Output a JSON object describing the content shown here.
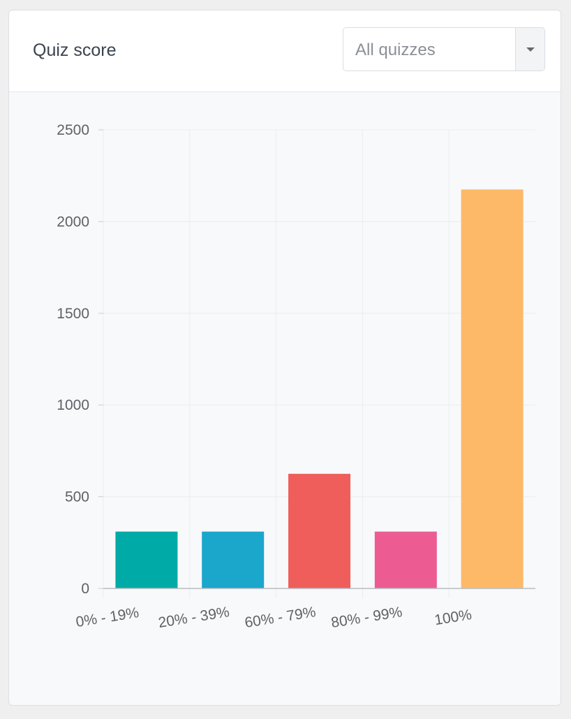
{
  "card": {
    "title": "Quiz score",
    "filter": {
      "selected": "All quizzes"
    }
  },
  "chart_data": {
    "type": "bar",
    "title": "",
    "xlabel": "",
    "ylabel": "",
    "categories": [
      "0% - 19%",
      "20% - 39%",
      "60% - 79%",
      "80% - 99%",
      "100%"
    ],
    "values": [
      310,
      310,
      625,
      310,
      2175
    ],
    "colors": [
      "#00aaa6",
      "#1ba6cb",
      "#ef5e5b",
      "#ec5c93",
      "#fdb968"
    ],
    "ylim": [
      0,
      2500
    ],
    "yticks": [
      0,
      500,
      1000,
      1500,
      2000,
      2500
    ],
    "grid": true,
    "legend": "none"
  }
}
